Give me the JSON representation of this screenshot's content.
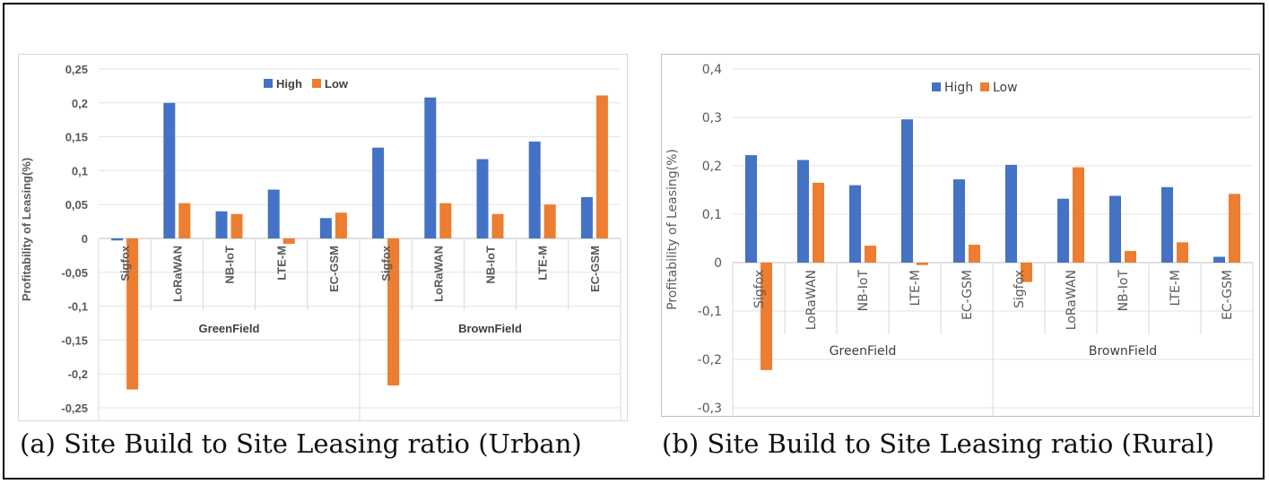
{
  "chart_data": [
    {
      "type": "bar",
      "caption": "(a) Site Build to Site Leasing ratio (Urban)",
      "ylabel": "Profitability of Leasing(%)",
      "ylim": [
        -0.25,
        0.25
      ],
      "yticks": [
        0.25,
        0.2,
        0.15,
        0.1,
        0.05,
        0,
        -0.05,
        -0.1,
        -0.15,
        -0.2,
        -0.25
      ],
      "ytick_labels": [
        "0,25",
        "0,2",
        "0,15",
        "0,1",
        "0,05",
        "0",
        "-0,05",
        "-0,1",
        "-0,15",
        "-0,2",
        "-0,25"
      ],
      "categories": [
        "Sigfox",
        "LoRaWAN",
        "NB-IoT",
        "LTE-M",
        "EC-GSM",
        "Sigfox",
        "LoRaWAN",
        "NB-IoT",
        "LTE-M",
        "EC-GSM"
      ],
      "groups": [
        {
          "label": "GreenField",
          "count": 5
        },
        {
          "label": "BrownField",
          "count": 5
        }
      ],
      "series": [
        {
          "name": "High",
          "color": "#4472c4",
          "values": [
            -0.003,
            0.2,
            0.04,
            0.072,
            0.03,
            0.134,
            0.208,
            0.117,
            0.143,
            0.061
          ]
        },
        {
          "name": "Low",
          "color": "#ed7d31",
          "values": [
            -0.223,
            0.052,
            0.036,
            -0.008,
            0.038,
            -0.217,
            0.052,
            0.036,
            0.05,
            0.211
          ]
        }
      ],
      "legend": "top-center",
      "grid": true
    },
    {
      "type": "bar",
      "caption": "(b) Site Build to Site Leasing ratio (Rural)",
      "ylabel": "Profitability of Leasing(%)",
      "ylim": [
        -0.3,
        0.4
      ],
      "yticks": [
        0.4,
        0.3,
        0.2,
        0.1,
        0,
        -0.1,
        -0.2,
        -0.3
      ],
      "ytick_labels": [
        "0,4",
        "0,3",
        "0,2",
        "0,1",
        "0",
        "-0,1",
        "-0,2",
        "-0,3"
      ],
      "categories": [
        "Sigfox",
        "LoRaWAN",
        "NB-IoT",
        "LTE-M",
        "EC-GSM",
        "Sigfox",
        "LoRaWAN",
        "NB-IoT",
        "LTE-M",
        "EC-GSM"
      ],
      "groups": [
        {
          "label": "GreenField",
          "count": 5
        },
        {
          "label": "BrownField",
          "count": 5
        }
      ],
      "series": [
        {
          "name": "High",
          "color": "#4472c4",
          "values": [
            0.222,
            0.212,
            0.16,
            0.296,
            0.172,
            0.202,
            0.132,
            0.138,
            0.156,
            0.012
          ]
        },
        {
          "name": "Low",
          "color": "#ed7d31",
          "values": [
            -0.222,
            0.165,
            0.035,
            -0.005,
            0.037,
            -0.04,
            0.197,
            0.024,
            0.042,
            0.142
          ]
        }
      ],
      "legend": "top-center",
      "grid": true
    }
  ]
}
